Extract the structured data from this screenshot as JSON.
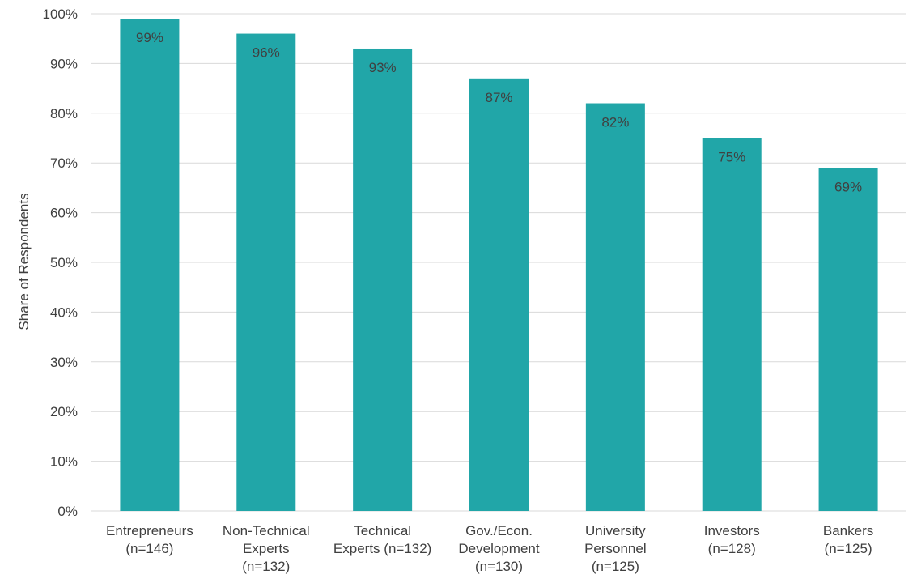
{
  "chart_data": {
    "type": "bar",
    "categories": [
      [
        "Entrepreneurs",
        "(n=146)"
      ],
      [
        "Non-Technical",
        "Experts",
        "(n=132)"
      ],
      [
        "Technical",
        "Experts (n=132)"
      ],
      [
        "Gov./Econ.",
        "Development",
        "(n=130)"
      ],
      [
        "University",
        "Personnel",
        "(n=125)"
      ],
      [
        "Investors",
        "(n=128)"
      ],
      [
        "Bankers",
        "(n=125)"
      ]
    ],
    "values": [
      99,
      96,
      93,
      87,
      82,
      75,
      69
    ],
    "data_labels": [
      "99%",
      "96%",
      "93%",
      "87%",
      "82%",
      "75%",
      "69%"
    ],
    "ylabel": "Share of Respondents",
    "xlabel": "",
    "ylim": [
      0,
      100
    ],
    "yticks": [
      "0%",
      "10%",
      "20%",
      "30%",
      "40%",
      "50%",
      "60%",
      "70%",
      "80%",
      "90%",
      "100%"
    ],
    "grid": true,
    "legend": "none",
    "bar_color": "#21A6A8",
    "grid_color": "#D9D9D9"
  }
}
